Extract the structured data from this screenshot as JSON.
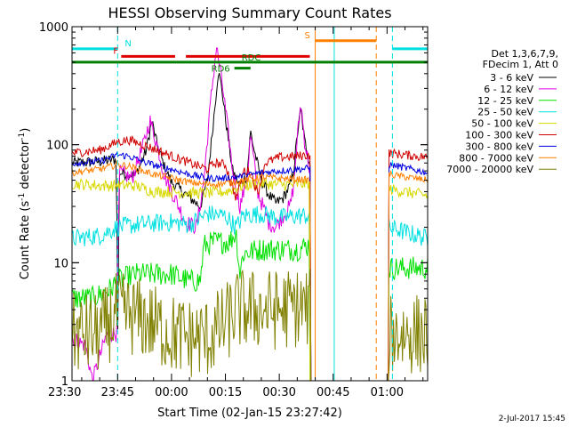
{
  "chart_data": {
    "type": "line",
    "title": "HESSI Observing Summary Count Rates",
    "xlabel": "Start Time (02-Jan-15 23:27:42)",
    "ylabel_main": "Count Rate (s",
    "ylabel_sup1": "-1",
    "ylabel_mid": " detector",
    "ylabel_sup2": "-1",
    "ylabel_end": ")",
    "yscale": "log",
    "ylim": [
      1,
      1000
    ],
    "xlim_minutes": [
      -27.7,
      71.3
    ],
    "x_ticks": [
      {
        "m": -30,
        "label": "23:30"
      },
      {
        "m": -15,
        "label": "23:45"
      },
      {
        "m": 0,
        "label": "00:00"
      },
      {
        "m": 15,
        "label": "00:15"
      },
      {
        "m": 30,
        "label": "00:30"
      },
      {
        "m": 45,
        "label": "00:45"
      },
      {
        "m": 60,
        "label": "01:00"
      }
    ],
    "y_ticks": [
      {
        "v": 1,
        "label": "1"
      },
      {
        "v": 10,
        "label": "10"
      },
      {
        "v": 100,
        "label": "100"
      },
      {
        "v": 1000,
        "label": "1000"
      }
    ],
    "legend": {
      "placement": "right",
      "header": [
        "Det 1,3,6,7,9,",
        "FDecim 1, Att 0"
      ],
      "entries": [
        {
          "label": "3 - 6 keV",
          "color": "#000000"
        },
        {
          "label": "6 - 12 keV",
          "color": "#e000e0"
        },
        {
          "label": "12 - 25 keV",
          "color": "#00e000"
        },
        {
          "label": "25 - 50 keV",
          "color": "#00e0e0"
        },
        {
          "label": "50 - 100 keV",
          "color": "#d8d800"
        },
        {
          "label": "100 - 300 keV",
          "color": "#d00000"
        },
        {
          "label": "300 - 800 keV",
          "color": "#0000e0"
        },
        {
          "label": "800 - 7000 keV",
          "color": "#ff8000"
        },
        {
          "label": "7000 - 20000 keV",
          "color": "#808000"
        }
      ]
    },
    "flags": [
      {
        "label": "N",
        "color": "#00e0e0",
        "ypos": 650,
        "segments": [
          [
            -27.7,
            -15
          ],
          [
            61.5,
            71.3
          ]
        ]
      },
      {
        "label": "F",
        "color": "#e00000",
        "ypos": 560,
        "segments": [
          [
            -14,
            1
          ],
          [
            4,
            38.5
          ]
        ]
      },
      {
        "label": "S",
        "color": "#ff8000",
        "ypos": 760,
        "segments": [
          [
            40,
            57
          ]
        ]
      },
      {
        "label": "RDC",
        "color": "#008000",
        "ypos": 500,
        "segments": [
          [
            -27.7,
            71.3
          ]
        ]
      },
      {
        "label": "RD6",
        "color": "#008000",
        "ypos": 445,
        "segments": [
          [
            17.5,
            22
          ]
        ]
      }
    ],
    "vlines": [
      {
        "m": -15,
        "color": "#00e0e0",
        "style": "dashed"
      },
      {
        "m": 40,
        "color": "#ff8000",
        "style": "solid"
      },
      {
        "m": 45.3,
        "color": "#00e0e0",
        "style": "solid"
      },
      {
        "m": 57,
        "color": "#ff8000",
        "style": "dashed"
      },
      {
        "m": 61.5,
        "color": "#00e0e0",
        "style": "dashed"
      }
    ],
    "series": [
      {
        "name": "3 - 6 keV",
        "color": "#000000",
        "noise": 0.05,
        "points": [
          [
            -27.7,
            70
          ],
          [
            -20,
            72
          ],
          [
            -15.3,
            75
          ],
          [
            -15,
            2
          ],
          [
            -14.5,
            58
          ],
          [
            -10,
            55
          ],
          [
            -7,
            90
          ],
          [
            -5.5,
            160
          ],
          [
            -4,
            100
          ],
          [
            -2,
            65
          ],
          [
            0,
            48
          ],
          [
            4,
            38
          ],
          [
            8,
            30
          ],
          [
            10,
            50
          ],
          [
            12,
            200
          ],
          [
            13,
            420
          ],
          [
            14,
            300
          ],
          [
            15,
            170
          ],
          [
            17,
            60
          ],
          [
            19,
            45
          ],
          [
            21,
            55
          ],
          [
            22,
            130
          ],
          [
            23,
            90
          ],
          [
            25,
            50
          ],
          [
            27,
            38
          ],
          [
            29,
            32
          ],
          [
            31,
            35
          ],
          [
            33,
            45
          ],
          [
            34,
            60
          ],
          [
            35,
            120
          ],
          [
            36,
            200
          ],
          [
            37,
            110
          ],
          [
            38.5,
            70
          ],
          [
            39,
            0
          ]
        ]
      },
      {
        "name": "6 - 12 keV",
        "color": "#e000e0",
        "noise": 0.07,
        "points": [
          [
            -27.7,
            2.3
          ],
          [
            -24,
            2.0
          ],
          [
            -22,
            1.0
          ],
          [
            -18,
            2.5
          ],
          [
            -15.3,
            2.5
          ],
          [
            -14.5,
            58
          ],
          [
            -11,
            52
          ],
          [
            -8,
            95
          ],
          [
            -6,
            160
          ],
          [
            -4,
            100
          ],
          [
            -2,
            55
          ],
          [
            1,
            35
          ],
          [
            4,
            22
          ],
          [
            7,
            20
          ],
          [
            9,
            50
          ],
          [
            11,
            250
          ],
          [
            12.5,
            680
          ],
          [
            14,
            350
          ],
          [
            15.5,
            150
          ],
          [
            17,
            60
          ],
          [
            19,
            30
          ],
          [
            21,
            50
          ],
          [
            22,
            120
          ],
          [
            24,
            40
          ],
          [
            27,
            22
          ],
          [
            29,
            20
          ],
          [
            31,
            25
          ],
          [
            33,
            30
          ],
          [
            34,
            45
          ],
          [
            35,
            110
          ],
          [
            36,
            230
          ],
          [
            37,
            110
          ],
          [
            38.5,
            60
          ],
          [
            39,
            0
          ]
        ]
      },
      {
        "name": "12 - 25 keV",
        "color": "#00e000",
        "noise": 0.1,
        "points": [
          [
            -27.7,
            5
          ],
          [
            -22,
            5
          ],
          [
            -17,
            6
          ],
          [
            -15,
            7
          ],
          [
            -10,
            8
          ],
          [
            0,
            8
          ],
          [
            5,
            7
          ],
          [
            8,
            7
          ],
          [
            9,
            14
          ],
          [
            12,
            15
          ],
          [
            16,
            15
          ],
          [
            18,
            18
          ],
          [
            19,
            8
          ],
          [
            20,
            12
          ],
          [
            25,
            13
          ],
          [
            30,
            13
          ],
          [
            35,
            13
          ],
          [
            38,
            14
          ],
          [
            39,
            0
          ],
          [
            60.3,
            0
          ],
          [
            60.5,
            9
          ],
          [
            71.3,
            9
          ]
        ]
      },
      {
        "name": "25 - 50 keV",
        "color": "#00e0e0",
        "noise": 0.08,
        "points": [
          [
            -27.7,
            16
          ],
          [
            -20,
            17
          ],
          [
            -15,
            20
          ],
          [
            -10,
            21
          ],
          [
            0,
            22
          ],
          [
            5,
            21
          ],
          [
            10,
            26
          ],
          [
            15,
            25
          ],
          [
            18,
            20
          ],
          [
            20,
            25
          ],
          [
            25,
            26
          ],
          [
            30,
            24
          ],
          [
            35,
            25
          ],
          [
            38,
            25
          ],
          [
            39,
            0
          ],
          [
            60.3,
            0
          ],
          [
            60.5,
            20
          ],
          [
            71.3,
            16
          ]
        ]
      },
      {
        "name": "50 - 100 keV",
        "color": "#d8d800",
        "noise": 0.05,
        "points": [
          [
            -27.7,
            47
          ],
          [
            -20,
            45
          ],
          [
            -15,
            45
          ],
          [
            -10,
            45
          ],
          [
            -5,
            40
          ],
          [
            0,
            40
          ],
          [
            5,
            39
          ],
          [
            10,
            39
          ],
          [
            15,
            40
          ],
          [
            20,
            45
          ],
          [
            25,
            47
          ],
          [
            30,
            46
          ],
          [
            35,
            46
          ],
          [
            38,
            47
          ],
          [
            39,
            0
          ],
          [
            60.3,
            0
          ],
          [
            60.5,
            42
          ],
          [
            71.3,
            37
          ]
        ]
      },
      {
        "name": "100 - 300 keV",
        "color": "#d00000",
        "noise": 0.04,
        "points": [
          [
            -27.7,
            85
          ],
          [
            -20,
            90
          ],
          [
            -15,
            105
          ],
          [
            -12,
            110
          ],
          [
            -8,
            100
          ],
          [
            -4,
            90
          ],
          [
            0,
            80
          ],
          [
            5,
            70
          ],
          [
            8,
            65
          ],
          [
            10,
            62
          ],
          [
            12,
            70
          ],
          [
            15,
            68
          ],
          [
            18,
            35
          ],
          [
            20,
            60
          ],
          [
            22,
            60
          ],
          [
            24,
            38
          ],
          [
            26,
            70
          ],
          [
            30,
            78
          ],
          [
            35,
            80
          ],
          [
            38.5,
            82
          ],
          [
            39,
            0
          ],
          [
            60.3,
            0
          ],
          [
            60.5,
            85
          ],
          [
            71.3,
            78
          ]
        ]
      },
      {
        "name": "300 - 800 keV",
        "color": "#0000e0",
        "noise": 0.03,
        "points": [
          [
            -27.7,
            70
          ],
          [
            -20,
            72
          ],
          [
            -15,
            82
          ],
          [
            -12,
            80
          ],
          [
            -8,
            72
          ],
          [
            -4,
            66
          ],
          [
            0,
            62
          ],
          [
            5,
            56
          ],
          [
            10,
            52
          ],
          [
            15,
            52
          ],
          [
            20,
            54
          ],
          [
            25,
            58
          ],
          [
            30,
            60
          ],
          [
            35,
            62
          ],
          [
            38.5,
            63
          ],
          [
            39,
            0
          ],
          [
            60.3,
            0
          ],
          [
            60.5,
            68
          ],
          [
            71.3,
            58
          ]
        ]
      },
      {
        "name": "800 - 7000 keV",
        "color": "#ff8000",
        "noise": 0.03,
        "points": [
          [
            -27.7,
            58
          ],
          [
            -20,
            62
          ],
          [
            -15,
            68
          ],
          [
            -12,
            66
          ],
          [
            -8,
            60
          ],
          [
            -4,
            55
          ],
          [
            0,
            52
          ],
          [
            5,
            48
          ],
          [
            10,
            46
          ],
          [
            15,
            47
          ],
          [
            20,
            50
          ],
          [
            25,
            53
          ],
          [
            30,
            52
          ],
          [
            35,
            51
          ],
          [
            38.5,
            50
          ],
          [
            39,
            0
          ],
          [
            60.3,
            0
          ],
          [
            60.5,
            56
          ],
          [
            71.3,
            50
          ]
        ]
      },
      {
        "name": "7000 - 20000 keV",
        "color": "#808000",
        "noise": 0.35,
        "points": [
          [
            -27.7,
            2.5
          ],
          [
            -20,
            2.5
          ],
          [
            -15,
            3.8
          ],
          [
            -10,
            3.5
          ],
          [
            -5,
            3.0
          ],
          [
            0,
            2.5
          ],
          [
            5,
            2.3
          ],
          [
            10,
            2.3
          ],
          [
            15,
            3.0
          ],
          [
            18,
            4.0
          ],
          [
            25,
            4.0
          ],
          [
            30,
            4.0
          ],
          [
            35,
            4.2
          ],
          [
            38.5,
            4.0
          ],
          [
            39,
            0
          ],
          [
            60.3,
            0
          ],
          [
            60.5,
            2.5
          ],
          [
            71.3,
            2.5
          ]
        ]
      }
    ],
    "footer_date": "2-Jul-2017 15:45"
  }
}
